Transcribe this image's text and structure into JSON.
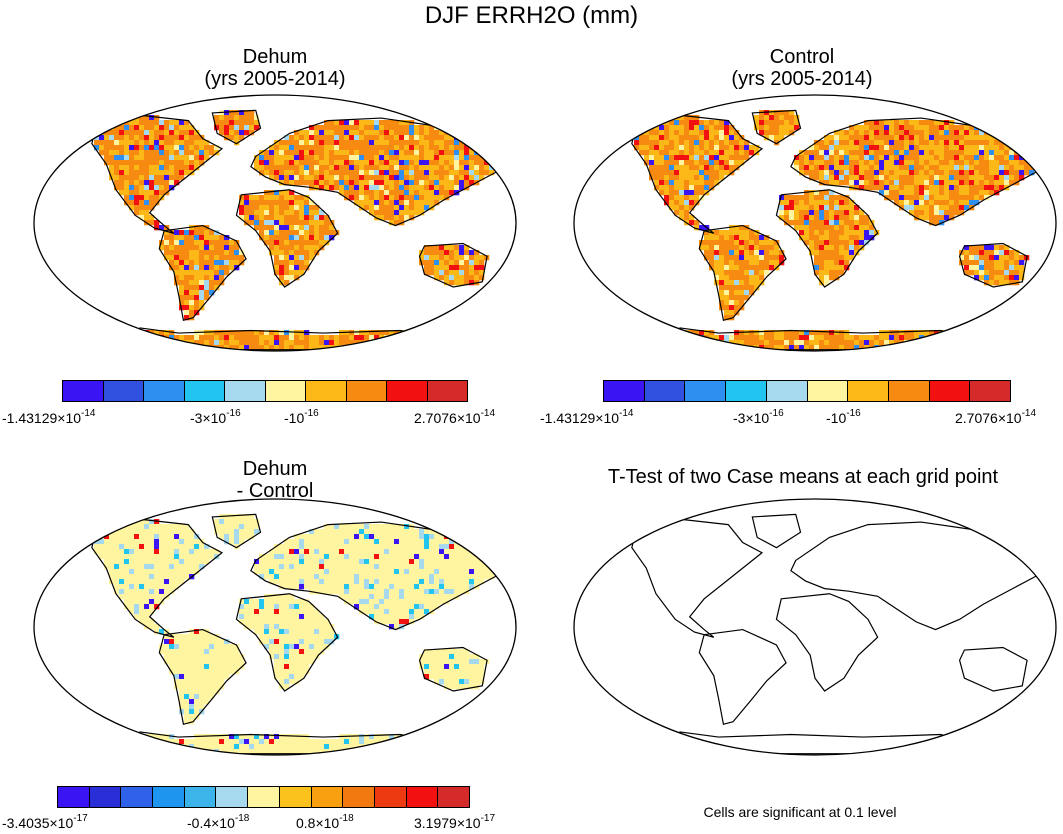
{
  "title": "DJF ERRH2O (mm)",
  "panels": [
    {
      "id": "dehum",
      "title_line1": "Dehum",
      "title_line2": "(yrs 2005-2014)",
      "fill": "orange",
      "colorbar": [
        "#3a14f2",
        "#3050e0",
        "#2f8ff0",
        "#22c4f0",
        "#a6d8ee",
        "#fff5a0",
        "#fbb816",
        "#f78a10",
        "#f21010",
        "#d42a2a"
      ],
      "ticks": [
        {
          "mant": "-1.43129",
          "exp": "-14"
        },
        {
          "mant": "-3",
          "exp": "-16"
        },
        {
          "mant": "-10",
          "exp": "-16",
          "plain": true
        },
        {
          "mant": "2.7076",
          "exp": "-14"
        }
      ]
    },
    {
      "id": "control",
      "title_line1": "Control",
      "title_line2": "(yrs 2005-2014)",
      "fill": "orange",
      "colorbar": [
        "#3a14f2",
        "#3050e0",
        "#2f8ff0",
        "#22c4f0",
        "#a6d8ee",
        "#fff5a0",
        "#fbb816",
        "#f78a10",
        "#f21010",
        "#d42a2a"
      ],
      "ticks": [
        {
          "mant": "-1.43129",
          "exp": "-14"
        },
        {
          "mant": "-3",
          "exp": "-16"
        },
        {
          "mant": "-10",
          "exp": "-16",
          "plain": true
        },
        {
          "mant": "2.7076",
          "exp": "-14"
        }
      ]
    },
    {
      "id": "diff",
      "title_line1": "Dehum",
      "title_line2": "- Control",
      "fill": "yellow",
      "colorbar": [
        "#3a14f2",
        "#2a2ed6",
        "#2f62e8",
        "#1e96f0",
        "#3cb4ea",
        "#a6d8ee",
        "#fff5a0",
        "#fbc21e",
        "#f8a010",
        "#f27810",
        "#ee3a10",
        "#f21010",
        "#d42a2a"
      ],
      "ticks": [
        {
          "mant": "-3.4035",
          "exp": "-17"
        },
        {
          "mant": "-0.4",
          "exp": "-18"
        },
        {
          "mant": "0.8",
          "exp": "-18"
        },
        {
          "mant": "3.1979",
          "exp": "-17"
        }
      ]
    },
    {
      "id": "ttest",
      "title_line1": "T-Test of two Case means at each grid point",
      "fill": "none",
      "note": "Cells are significant at 0.1 level"
    }
  ]
}
